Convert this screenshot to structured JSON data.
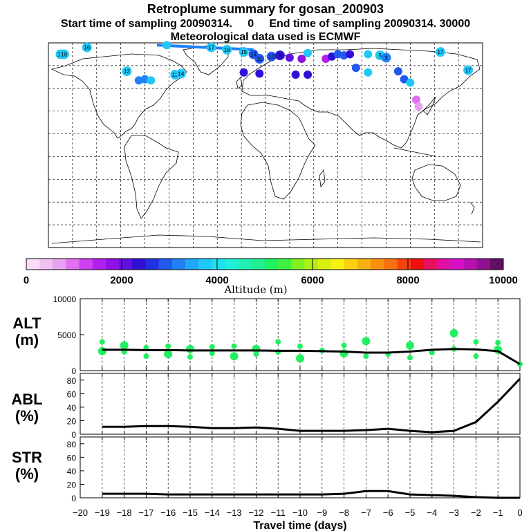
{
  "header": {
    "title": "Retroplume summary for gosan_200903",
    "start_line": "Start time of sampling 20090314.     0     End time of sampling 20090314. 30000",
    "met_line": "Meteorological data used is ECMWF"
  },
  "colorbar": {
    "ticks": [
      "0",
      "2000",
      "4000",
      "6000",
      "8000",
      "10000"
    ],
    "label": "Altitude (m)",
    "colors": [
      "#f8dcf8",
      "#f0c0f0",
      "#e8a0f0",
      "#e070f0",
      "#d040f0",
      "#b020f0",
      "#9010e8",
      "#6010e0",
      "#3010d8",
      "#2030e0",
      "#2058f0",
      "#2080f8",
      "#20a8f8",
      "#20c8f8",
      "#20e0f0",
      "#20f0d8",
      "#20f0b0",
      "#20f090",
      "#20f060",
      "#40f040",
      "#80f020",
      "#b0f010",
      "#d8f010",
      "#f8f010",
      "#f8d010",
      "#f8b010",
      "#f89010",
      "#f87010",
      "#f84010",
      "#f01010",
      "#e81060",
      "#e010a0",
      "#d810c8",
      "#b810b0",
      "#901090",
      "#601060"
    ]
  },
  "map": {
    "markers": [
      {
        "lon": -148,
        "lat": 86,
        "label": "16",
        "color": "#20c8f8"
      },
      {
        "lon": -115,
        "lat": 65,
        "label": "12",
        "color": "#20c8f8"
      },
      {
        "lon": -75,
        "lat": 62,
        "label": "13",
        "color": "#20c8f8"
      },
      {
        "lon": -70,
        "lat": 63,
        "label": "14",
        "color": "#20c8f8"
      },
      {
        "lon": -170,
        "lat": 80,
        "label": "19",
        "color": "#20c8f8"
      },
      {
        "lon": -167,
        "lat": 80,
        "label": "19",
        "color": "#20c8f8"
      },
      {
        "lon": -82,
        "lat": 88,
        "label": "",
        "color": "#20c8f8"
      },
      {
        "lon": -105,
        "lat": 57,
        "label": "",
        "color": "#2080f8"
      },
      {
        "lon": -100,
        "lat": 58,
        "label": "",
        "color": "#2080f8"
      },
      {
        "lon": -95,
        "lat": 57,
        "label": "",
        "color": "#20c8f8"
      },
      {
        "lon": -45,
        "lat": 86,
        "label": "17",
        "color": "#20c8f8"
      },
      {
        "lon": -32,
        "lat": 84,
        "label": "18",
        "color": "#20c8f8"
      },
      {
        "lon": -18,
        "lat": 82,
        "label": "15",
        "color": "#20c8f8"
      },
      {
        "lon": -10,
        "lat": 80,
        "label": "13",
        "color": "#2058f0"
      },
      {
        "lon": -5,
        "lat": 76,
        "label": "11",
        "color": "#2058f0"
      },
      {
        "lon": 5,
        "lat": 78,
        "label": "10",
        "color": "#2058f0"
      },
      {
        "lon": 12,
        "lat": 79,
        "label": "9",
        "color": "#3010d8"
      },
      {
        "lon": 20,
        "lat": 77,
        "label": "",
        "color": "#6010e0"
      },
      {
        "lon": 30,
        "lat": 76,
        "label": "",
        "color": "#9010e8"
      },
      {
        "lon": 35,
        "lat": 81,
        "label": "",
        "color": "#20c8f8"
      },
      {
        "lon": 50,
        "lat": 76,
        "label": "",
        "color": "#b020f0"
      },
      {
        "lon": 55,
        "lat": 78,
        "label": "",
        "color": "#3010d8"
      },
      {
        "lon": 60,
        "lat": 80,
        "label": "",
        "color": "#2058f0"
      },
      {
        "lon": 65,
        "lat": 79,
        "label": "",
        "color": "#2058f0"
      },
      {
        "lon": 70,
        "lat": 80,
        "label": "",
        "color": "#3010d8"
      },
      {
        "lon": 85,
        "lat": 80,
        "label": "",
        "color": "#20c8f8"
      },
      {
        "lon": 95,
        "lat": 79,
        "label": "5",
        "color": "#20c8f8"
      },
      {
        "lon": 100,
        "lat": 77,
        "label": "3",
        "color": "#2080f8"
      },
      {
        "lon": 110,
        "lat": 65,
        "label": "",
        "color": "#2058f0"
      },
      {
        "lon": 115,
        "lat": 58,
        "label": "",
        "color": "#2058f0"
      },
      {
        "lon": 120,
        "lat": 55,
        "label": "",
        "color": "#20c8f8"
      },
      {
        "lon": 125,
        "lat": 40,
        "label": "",
        "color": "#e070f0"
      },
      {
        "lon": 127,
        "lat": 34,
        "label": "",
        "color": "#e8a0f0"
      },
      {
        "lon": 145,
        "lat": 82,
        "label": "17",
        "color": "#20c8f8"
      },
      {
        "lon": 168,
        "lat": 66,
        "label": "17",
        "color": "#20c8f8"
      },
      {
        "lon": 25,
        "lat": 62,
        "label": "",
        "color": "#3010d8"
      },
      {
        "lon": 35,
        "lat": 62,
        "label": "",
        "color": "#3010d8"
      },
      {
        "lon": -5,
        "lat": 63,
        "label": "",
        "color": "#3010d8"
      },
      {
        "lon": -18,
        "lat": 64,
        "label": "",
        "color": "#3010d8"
      },
      {
        "lon": 85,
        "lat": 64,
        "label": "",
        "color": "#20c8f8"
      },
      {
        "lon": 75,
        "lat": 68,
        "label": "",
        "color": "#2058f0"
      }
    ]
  },
  "chart_data": [
    {
      "type": "scatter",
      "panel": "ALT",
      "ylabel": "ALT\n(m)",
      "xlabel": "Travel time (days)",
      "xlim": [
        -20,
        0
      ],
      "ylim": [
        0,
        10000
      ],
      "yticks": [
        "0",
        "5000",
        "10000"
      ],
      "xticks": [
        "-20",
        "-19",
        "-18",
        "-17",
        "-16",
        "-15",
        "-14",
        "-13",
        "-12",
        "-11",
        "-10",
        "-9",
        "-8",
        "-7",
        "-6",
        "-5",
        "-4",
        "-3",
        "-2",
        "-1",
        "0"
      ],
      "mean_line": {
        "x": [
          -19,
          -18,
          -17,
          -16,
          -15,
          -14,
          -13,
          -12,
          -11,
          -10,
          -9,
          -8,
          -7,
          -6,
          -5,
          -4,
          -3,
          -2,
          -1,
          0
        ],
        "y": [
          2900,
          2900,
          2850,
          2850,
          2800,
          2800,
          2800,
          2800,
          2750,
          2750,
          2700,
          2650,
          2500,
          2500,
          2650,
          2900,
          3000,
          2950,
          2700,
          900
        ]
      },
      "points": [
        {
          "x": -19,
          "y": 2700
        },
        {
          "x": -19,
          "y": 4000
        },
        {
          "x": -18,
          "y": 2600
        },
        {
          "x": -18,
          "y": 3500
        },
        {
          "x": -17,
          "y": 2000
        },
        {
          "x": -17,
          "y": 3200
        },
        {
          "x": -16,
          "y": 2300
        },
        {
          "x": -16,
          "y": 3400
        },
        {
          "x": -15,
          "y": 1900
        },
        {
          "x": -15,
          "y": 3000
        },
        {
          "x": -14,
          "y": 2400
        },
        {
          "x": -14,
          "y": 3300
        },
        {
          "x": -13,
          "y": 2000
        },
        {
          "x": -13,
          "y": 3400
        },
        {
          "x": -12,
          "y": 2300
        },
        {
          "x": -12,
          "y": 3000
        },
        {
          "x": -11,
          "y": 2600
        },
        {
          "x": -11,
          "y": 4000
        },
        {
          "x": -10,
          "y": 1700
        },
        {
          "x": -10,
          "y": 3400
        },
        {
          "x": -9,
          "y": 2800
        },
        {
          "x": -8,
          "y": 2400
        },
        {
          "x": -8,
          "y": 3500
        },
        {
          "x": -7,
          "y": 2000
        },
        {
          "x": -7,
          "y": 4100
        },
        {
          "x": -6,
          "y": 2300
        },
        {
          "x": -5,
          "y": 1800
        },
        {
          "x": -5,
          "y": 3500
        },
        {
          "x": -4,
          "y": 2500
        },
        {
          "x": -3,
          "y": 3000
        },
        {
          "x": -3,
          "y": 5200
        },
        {
          "x": -2,
          "y": 2000
        },
        {
          "x": -2,
          "y": 4000
        },
        {
          "x": -1,
          "y": 2900
        },
        {
          "x": -1,
          "y": 3900
        },
        {
          "x": 0,
          "y": 900
        }
      ]
    },
    {
      "type": "line",
      "panel": "ABL",
      "ylabel": "ABL\n(%)",
      "ylim": [
        0,
        90
      ],
      "yticks": [
        "0",
        "20",
        "40",
        "60",
        "80"
      ],
      "x": [
        -19,
        -18,
        -17,
        -16,
        -15,
        -14,
        -13,
        -12,
        -11,
        -10,
        -9,
        -8,
        -7,
        -6,
        -5,
        -4,
        -3,
        -2,
        -1,
        0
      ],
      "y": [
        11,
        11,
        12,
        12,
        11,
        9,
        9,
        10,
        8,
        5,
        5,
        5,
        6,
        8,
        5,
        3,
        5,
        18,
        48,
        82
      ]
    },
    {
      "type": "line",
      "panel": "STR",
      "ylabel": "STR\n(%)",
      "ylim": [
        0,
        90
      ],
      "yticks": [
        "0",
        "20",
        "40",
        "60",
        "80"
      ],
      "x": [
        -19,
        -18,
        -17,
        -16,
        -15,
        -14,
        -13,
        -12,
        -11,
        -10,
        -9,
        -8,
        -7,
        -6,
        -5,
        -4,
        -3,
        -2,
        -1,
        0
      ],
      "y": [
        6,
        6,
        6,
        5,
        5,
        5,
        5,
        5,
        5,
        5,
        5,
        6,
        10,
        10,
        5,
        4,
        3,
        1,
        0,
        0
      ]
    }
  ]
}
